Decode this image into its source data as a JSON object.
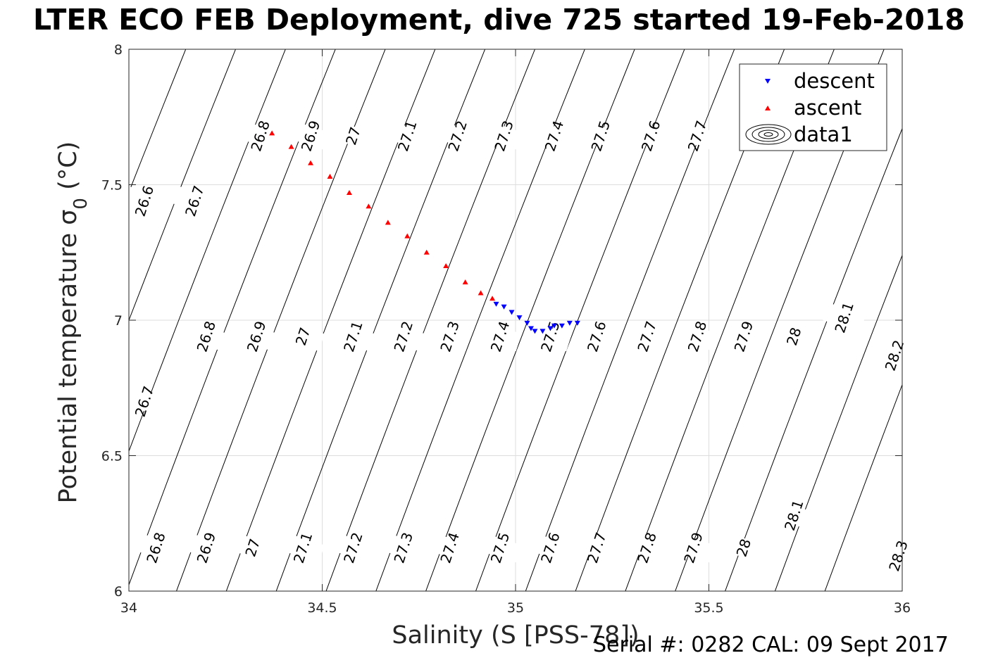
{
  "figure_title": "LTER ECO FEB Deployment, dive 725 started 19-Feb-2018",
  "footer": {
    "serial_label": "Serial #: 0282  CAL: 09 Sept 2017"
  },
  "colors": {
    "descent": "#0000ff",
    "ascent": "#ff0000",
    "contour": "#000000",
    "grid": "#dddddd"
  },
  "chart_data": {
    "type": "scatter",
    "title": "LTER ECO FEB Deployment, dive 725 started 19-Feb-2018",
    "xlabel": "Salinity (S [PSS-78])",
    "ylabel": "Potential temperature σ0 (°C)",
    "xlim": [
      34,
      36
    ],
    "ylim": [
      6,
      8
    ],
    "xticks": [
      34,
      34.5,
      35,
      35.5,
      36
    ],
    "yticks": [
      6,
      6.5,
      7,
      7.5,
      8
    ],
    "grid": true,
    "legend_position": "top-right",
    "legend": [
      "descent",
      "ascent",
      "data1"
    ],
    "contour_levels": [
      26.6,
      26.7,
      26.8,
      26.9,
      27.0,
      27.1,
      27.2,
      27.3,
      27.4,
      27.5,
      27.6,
      27.7,
      27.8,
      27.9,
      28.0,
      28.1,
      28.2,
      28.3
    ],
    "contour_labels": [
      {
        "text": "26.8",
        "x": 34.34,
        "y": 7.68
      },
      {
        "text": "26.9",
        "x": 34.47,
        "y": 7.68
      },
      {
        "text": "27",
        "x": 34.58,
        "y": 7.68
      },
      {
        "text": "27.1",
        "x": 34.72,
        "y": 7.68
      },
      {
        "text": "27.2",
        "x": 34.85,
        "y": 7.68
      },
      {
        "text": "27.3",
        "x": 34.97,
        "y": 7.68
      },
      {
        "text": "27.4",
        "x": 35.1,
        "y": 7.68
      },
      {
        "text": "27.5",
        "x": 35.22,
        "y": 7.68
      },
      {
        "text": "27.6",
        "x": 35.35,
        "y": 7.68
      },
      {
        "text": "27.7",
        "x": 35.47,
        "y": 7.68
      },
      {
        "text": "26.6",
        "x": 34.04,
        "y": 7.44
      },
      {
        "text": "26.7",
        "x": 34.17,
        "y": 7.44
      },
      {
        "text": "26.8",
        "x": 34.2,
        "y": 6.94
      },
      {
        "text": "26.9",
        "x": 34.33,
        "y": 6.94
      },
      {
        "text": "27",
        "x": 34.45,
        "y": 6.94
      },
      {
        "text": "27.1",
        "x": 34.58,
        "y": 6.94
      },
      {
        "text": "27.2",
        "x": 34.71,
        "y": 6.94
      },
      {
        "text": "27.3",
        "x": 34.83,
        "y": 6.94
      },
      {
        "text": "27.4",
        "x": 34.96,
        "y": 6.94
      },
      {
        "text": "27.5",
        "x": 35.09,
        "y": 6.94
      },
      {
        "text": "27.6",
        "x": 35.21,
        "y": 6.94
      },
      {
        "text": "27.7",
        "x": 35.34,
        "y": 6.94
      },
      {
        "text": "27.8",
        "x": 35.47,
        "y": 6.94
      },
      {
        "text": "27.9",
        "x": 35.59,
        "y": 6.94
      },
      {
        "text": "28",
        "x": 35.72,
        "y": 6.94
      },
      {
        "text": "28.1",
        "x": 35.85,
        "y": 7.01
      },
      {
        "text": "28.2",
        "x": 35.98,
        "y": 6.87
      },
      {
        "text": "26.7",
        "x": 34.04,
        "y": 6.7
      },
      {
        "text": "26.8",
        "x": 34.07,
        "y": 6.16
      },
      {
        "text": "26.9",
        "x": 34.2,
        "y": 6.16
      },
      {
        "text": "27",
        "x": 34.32,
        "y": 6.16
      },
      {
        "text": "27.1",
        "x": 34.45,
        "y": 6.16
      },
      {
        "text": "27.2",
        "x": 34.58,
        "y": 6.16
      },
      {
        "text": "27.3",
        "x": 34.71,
        "y": 6.16
      },
      {
        "text": "27.4",
        "x": 34.83,
        "y": 6.16
      },
      {
        "text": "27.5",
        "x": 34.96,
        "y": 6.16
      },
      {
        "text": "27.6",
        "x": 35.09,
        "y": 6.16
      },
      {
        "text": "27.7",
        "x": 35.21,
        "y": 6.16
      },
      {
        "text": "27.8",
        "x": 35.34,
        "y": 6.16
      },
      {
        "text": "27.9",
        "x": 35.46,
        "y": 6.16
      },
      {
        "text": "28",
        "x": 35.59,
        "y": 6.16
      },
      {
        "text": "28.1",
        "x": 35.72,
        "y": 6.28
      },
      {
        "text": "28.3",
        "x": 35.99,
        "y": 6.13
      }
    ],
    "series": [
      {
        "name": "descent",
        "marker": "triangle-down",
        "color": "#0000ff",
        "x": [
          34.95,
          34.97,
          34.99,
          35.01,
          35.03,
          35.04,
          35.05,
          35.07,
          35.09,
          35.1,
          35.12,
          35.14,
          35.16
        ],
        "y": [
          7.06,
          7.05,
          7.03,
          7.01,
          6.99,
          6.97,
          6.96,
          6.96,
          6.97,
          6.98,
          6.98,
          6.99,
          6.99
        ]
      },
      {
        "name": "ascent",
        "marker": "triangle-up",
        "color": "#ff0000",
        "x": [
          34.37,
          34.42,
          34.47,
          34.52,
          34.57,
          34.62,
          34.67,
          34.72,
          34.77,
          34.82,
          34.87,
          34.91,
          34.94
        ],
        "y": [
          7.69,
          7.64,
          7.58,
          7.53,
          7.47,
          7.42,
          7.36,
          7.31,
          7.25,
          7.2,
          7.14,
          7.1,
          7.08
        ]
      }
    ]
  }
}
